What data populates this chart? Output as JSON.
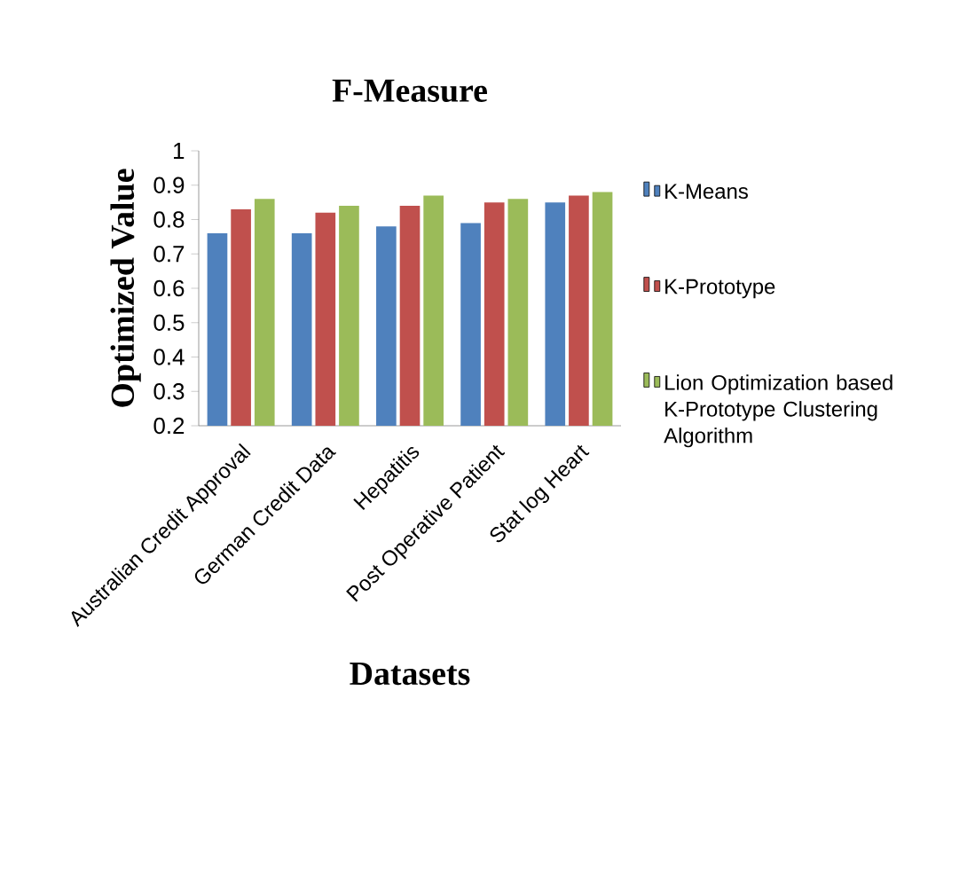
{
  "chart_data": {
    "type": "bar",
    "title": "F-Measure",
    "xlabel": "Datasets",
    "ylabel": "Optimized Value",
    "categories": [
      "Australian Credit Approval",
      "German Credit Data",
      "Hepatitis",
      "Post Operative Patient",
      "Stat log Heart"
    ],
    "series": [
      {
        "name": "K-Means",
        "color": "#4f81bd",
        "values": [
          0.76,
          0.76,
          0.78,
          0.79,
          0.85
        ]
      },
      {
        "name": "K-Prototype",
        "color": "#c0504d",
        "values": [
          0.83,
          0.82,
          0.84,
          0.85,
          0.87
        ]
      },
      {
        "name": "Lion Optimization based K-Prototype Clustering Algorithm",
        "color": "#9bbb59",
        "values": [
          0.86,
          0.84,
          0.87,
          0.86,
          0.88
        ]
      }
    ],
    "ylim": [
      0.2,
      1
    ],
    "yticks": [
      0.2,
      0.3,
      0.4,
      0.5,
      0.6,
      0.7,
      0.8,
      0.9,
      1
    ],
    "grid": false,
    "legend": "right"
  }
}
